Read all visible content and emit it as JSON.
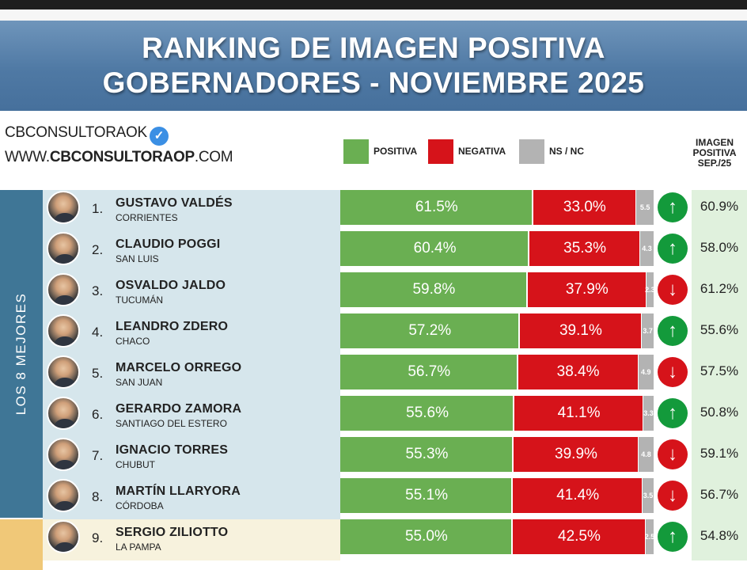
{
  "header": {
    "title_line1": "RANKING DE IMAGEN POSITIVA",
    "title_line2": "GOBERNADORES - NOVIEMBRE 2025"
  },
  "brand": {
    "name": "CBCONSULTORAOK",
    "verified_icon": "verified-check-icon",
    "website_prefix": "WWW.",
    "website_bold": "CBCONSULTORAOP",
    "website_suffix": ".COM"
  },
  "legend": [
    {
      "label": "POSITIVA",
      "color": "#6aaf52"
    },
    {
      "label": "NEGATIVA",
      "color": "#d6131a"
    },
    {
      "label": "NS / NC",
      "color": "#b3b3b3"
    }
  ],
  "previous_column_header": [
    "IMAGEN",
    "POSITIVA",
    "SEP./25"
  ],
  "group_label": "LOS 8 MEJORES",
  "colors": {
    "positive": "#6aaf52",
    "negative": "#d6131a",
    "nsnc": "#b3b3b3",
    "arrow_up": "#139a3b",
    "arrow_down": "#d6131a",
    "group_top": "#3f7696",
    "row_top_bg": "#d6e6ec",
    "row_other_bg": "#f7f2dd"
  },
  "chart_data": {
    "type": "bar",
    "stacked": true,
    "orientation": "horizontal",
    "title": "RANKING DE IMAGEN POSITIVA GOBERNADORES - NOVIEMBRE 2025",
    "series": [
      {
        "name": "POSITIVA",
        "values": [
          61.5,
          60.4,
          59.8,
          57.2,
          56.7,
          55.6,
          55.3,
          55.1,
          55.0
        ]
      },
      {
        "name": "NEGATIVA",
        "values": [
          33.0,
          35.3,
          37.9,
          39.1,
          38.4,
          41.1,
          39.9,
          41.4,
          42.5
        ]
      },
      {
        "name": "NS / NC",
        "values": [
          5.5,
          4.3,
          2.3,
          3.7,
          4.9,
          3.3,
          4.8,
          3.5,
          2.5
        ]
      }
    ],
    "rows": [
      {
        "rank": "1.",
        "name": "GUSTAVO VALDÉS",
        "province": "CORRIENTES",
        "pos": 61.5,
        "neg": 33.0,
        "ns": 5.5,
        "pos_label": "61.5%",
        "neg_label": "33.0%",
        "ns_label": "5.5",
        "trend": "up",
        "prev_label": "60.9%",
        "prev": 60.9
      },
      {
        "rank": "2.",
        "name": "CLAUDIO POGGI",
        "province": "SAN LUIS",
        "pos": 60.4,
        "neg": 35.3,
        "ns": 4.3,
        "pos_label": "60.4%",
        "neg_label": "35.3%",
        "ns_label": "4.3",
        "trend": "up",
        "prev_label": "58.0%",
        "prev": 58.0
      },
      {
        "rank": "3.",
        "name": "OSVALDO JALDO",
        "province": "TUCUMÁN",
        "pos": 59.8,
        "neg": 37.9,
        "ns": 2.3,
        "pos_label": "59.8%",
        "neg_label": "37.9%",
        "ns_label": "2.3",
        "trend": "down",
        "prev_label": "61.2%",
        "prev": 61.2
      },
      {
        "rank": "4.",
        "name": "LEANDRO ZDERO",
        "province": "CHACO",
        "pos": 57.2,
        "neg": 39.1,
        "ns": 3.7,
        "pos_label": "57.2%",
        "neg_label": "39.1%",
        "ns_label": "3.7",
        "trend": "up",
        "prev_label": "55.6%",
        "prev": 55.6
      },
      {
        "rank": "5.",
        "name": "MARCELO ORREGO",
        "province": "SAN JUAN",
        "pos": 56.7,
        "neg": 38.4,
        "ns": 4.9,
        "pos_label": "56.7%",
        "neg_label": "38.4%",
        "ns_label": "4.9",
        "trend": "down",
        "prev_label": "57.5%",
        "prev": 57.5
      },
      {
        "rank": "6.",
        "name": "GERARDO ZAMORA",
        "province": "SANTIAGO DEL ESTERO",
        "pos": 55.6,
        "neg": 41.1,
        "ns": 3.3,
        "pos_label": "55.6%",
        "neg_label": "41.1%",
        "ns_label": "3.3",
        "trend": "up",
        "prev_label": "50.8%",
        "prev": 50.8
      },
      {
        "rank": "7.",
        "name": "IGNACIO TORRES",
        "province": "CHUBUT",
        "pos": 55.3,
        "neg": 39.9,
        "ns": 4.8,
        "pos_label": "55.3%",
        "neg_label": "39.9%",
        "ns_label": "4.8",
        "trend": "down",
        "prev_label": "59.1%",
        "prev": 59.1
      },
      {
        "rank": "8.",
        "name": "MARTÍN LLARYORA",
        "province": "CÓRDOBA",
        "pos": 55.1,
        "neg": 41.4,
        "ns": 3.5,
        "pos_label": "55.1%",
        "neg_label": "41.4%",
        "ns_label": "3.5",
        "trend": "down",
        "prev_label": "56.7%",
        "prev": 56.7
      },
      {
        "rank": "9.",
        "name": "SERGIO ZILIOTTO",
        "province": "LA PAMPA",
        "pos": 55.0,
        "neg": 42.5,
        "ns": 2.5,
        "pos_label": "55.0%",
        "neg_label": "42.5%",
        "ns_label": "2.5",
        "trend": "up",
        "prev_label": "54.8%",
        "prev": 54.8
      }
    ]
  }
}
